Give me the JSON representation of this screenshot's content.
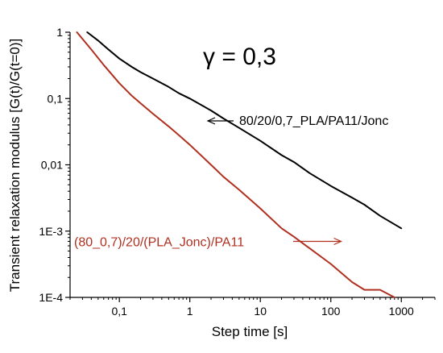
{
  "chart_data": {
    "type": "line",
    "title": "",
    "annotation": "γ = 0,3",
    "xlabel": "Step time [s]",
    "ylabel": "Transient relaxation modulus [G(t)/G(t=0)]",
    "xscale": "log",
    "yscale": "log",
    "xlim": [
      0.02,
      3000
    ],
    "ylim": [
      0.0001,
      1
    ],
    "xticks": [
      {
        "value": 0.1,
        "label": "0,1"
      },
      {
        "value": 1,
        "label": "1"
      },
      {
        "value": 10,
        "label": "10"
      },
      {
        "value": 100,
        "label": "100"
      },
      {
        "value": 1000,
        "label": "1000"
      }
    ],
    "yticks": [
      {
        "value": 1,
        "label": "1"
      },
      {
        "value": 0.1,
        "label": "0,1"
      },
      {
        "value": 0.01,
        "label": "0,01"
      },
      {
        "value": 0.001,
        "label": "1E-3"
      },
      {
        "value": 0.0001,
        "label": "1E-4"
      }
    ],
    "grid": false,
    "series": [
      {
        "name": "80/20/0,7_PLA/PA11/Jonc",
        "color": "#000000",
        "x": [
          0.035,
          0.05,
          0.07,
          0.1,
          0.15,
          0.2,
          0.3,
          0.5,
          0.7,
          1,
          2,
          3,
          5,
          10,
          20,
          30,
          50,
          100,
          200,
          300,
          500,
          1000
        ],
        "y": [
          1.0,
          0.75,
          0.55,
          0.4,
          0.3,
          0.25,
          0.2,
          0.15,
          0.12,
          0.1,
          0.066,
          0.05,
          0.036,
          0.023,
          0.014,
          0.011,
          0.0075,
          0.0048,
          0.0032,
          0.0025,
          0.0017,
          0.0011
        ]
      },
      {
        "name": "(80_0,7)/20/(PLA_Jonc)/PA11",
        "color": "#b03020",
        "x": [
          0.025,
          0.04,
          0.06,
          0.1,
          0.15,
          0.2,
          0.3,
          0.5,
          0.7,
          1,
          2,
          3,
          5,
          10,
          20,
          30,
          50,
          100,
          200,
          300,
          500,
          800
        ],
        "y": [
          1.0,
          0.55,
          0.32,
          0.17,
          0.11,
          0.085,
          0.059,
          0.038,
          0.028,
          0.02,
          0.01,
          0.0066,
          0.0042,
          0.0022,
          0.0011,
          0.00082,
          0.00055,
          0.00032,
          0.00017,
          0.00013,
          0.00013,
          0.0001
        ]
      }
    ],
    "labels": [
      {
        "series": 0,
        "text": "80/20/0,7_PLA/PA11/Jonc",
        "arrow_to": {
          "x": 1.8,
          "y": 0.046
        }
      },
      {
        "series": 1,
        "text": "(80_0,7)/20/(PLA_Jonc)/PA11",
        "arrow_to": {
          "x": 140,
          "y": 0.0007
        }
      }
    ]
  }
}
